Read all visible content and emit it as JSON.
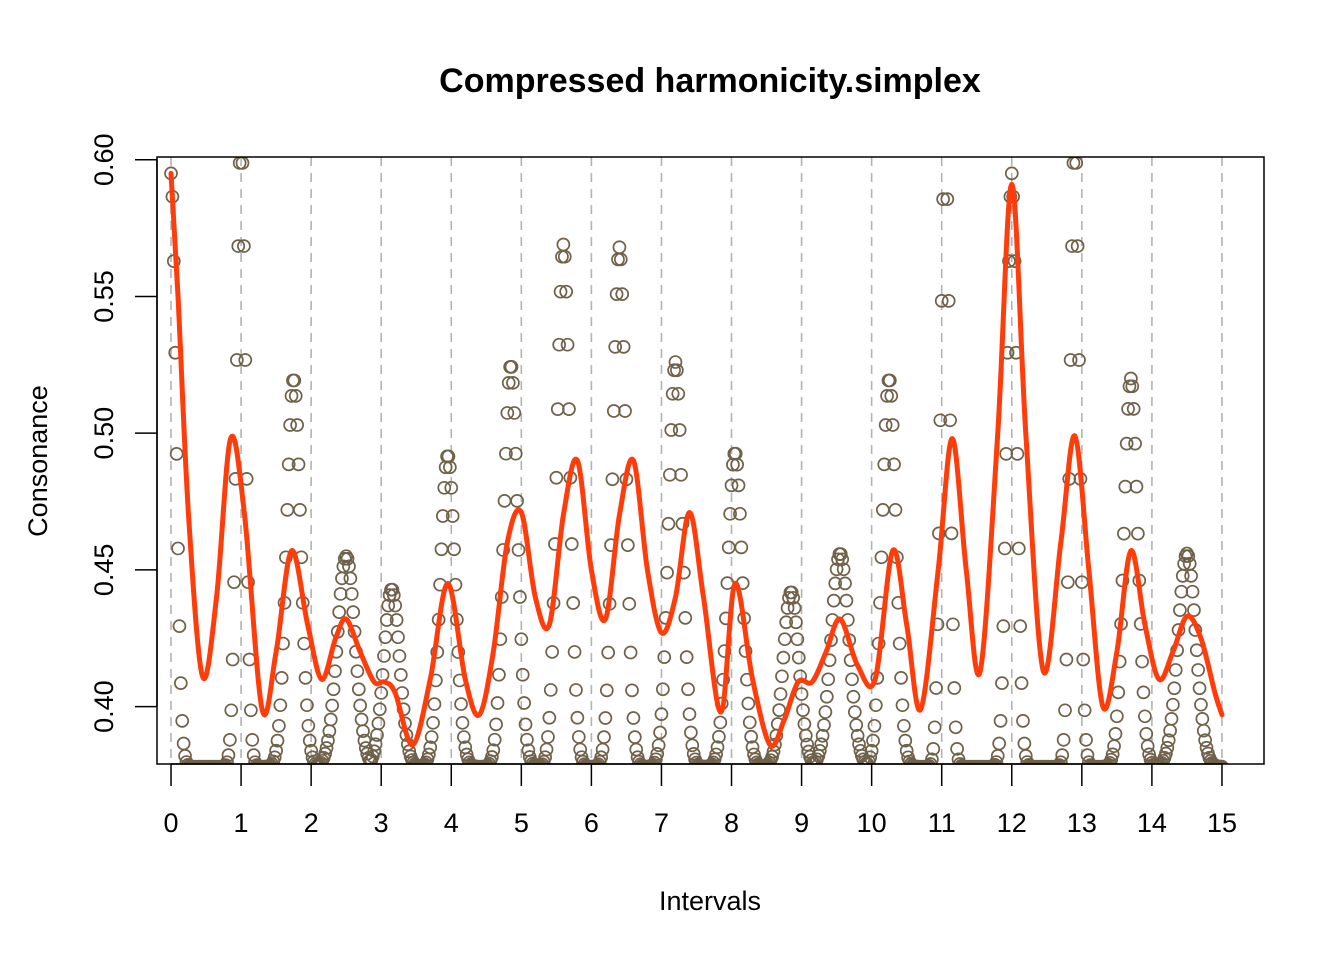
{
  "chart_data": {
    "type": "scatter",
    "title": "Compressed harmonicity.simplex",
    "xlabel": "Intervals",
    "ylabel": "Consonance",
    "xlim": [
      -0.2,
      15.6
    ],
    "ylim": [
      0.379,
      0.601
    ],
    "xticks": [
      "0",
      "1",
      "2",
      "3",
      "4",
      "5",
      "6",
      "7",
      "8",
      "9",
      "10",
      "11",
      "12",
      "13",
      "14",
      "15"
    ],
    "yticks": [
      "0.40",
      "0.45",
      "0.50",
      "0.55",
      "0.60"
    ],
    "vlines": [
      0,
      1,
      2,
      3,
      4,
      5,
      6,
      7,
      8,
      9,
      10,
      11,
      12,
      13,
      14,
      15
    ],
    "colors": {
      "points": "#70614a",
      "smooth": "#ff3c0a",
      "vlines": "#b3b3b3",
      "axis": "#000000"
    },
    "series": [
      {
        "role": "points",
        "peaks": [
          {
            "x": 0,
            "y": 0.595,
            "w": 0.1
          },
          {
            "x": 1,
            "y": 0.61,
            "w": 0.09
          },
          {
            "x": 1.75,
            "y": 0.52,
            "w": 0.14
          },
          {
            "x": 2.5,
            "y": 0.455,
            "w": 0.18
          },
          {
            "x": 3.15,
            "y": 0.443,
            "w": 0.16
          },
          {
            "x": 3.95,
            "y": 0.492,
            "w": 0.15
          },
          {
            "x": 4.85,
            "y": 0.525,
            "w": 0.14
          },
          {
            "x": 5.6,
            "y": 0.569,
            "w": 0.13
          },
          {
            "x": 6.4,
            "y": 0.568,
            "w": 0.13
          },
          {
            "x": 7.2,
            "y": 0.526,
            "w": 0.14
          },
          {
            "x": 8.05,
            "y": 0.493,
            "w": 0.15
          },
          {
            "x": 8.85,
            "y": 0.442,
            "w": 0.16
          },
          {
            "x": 9.55,
            "y": 0.456,
            "w": 0.18
          },
          {
            "x": 10.25,
            "y": 0.52,
            "w": 0.14
          },
          {
            "x": 11.05,
            "y": 0.61,
            "w": 0.09
          },
          {
            "x": 12,
            "y": 0.595,
            "w": 0.1
          },
          {
            "x": 12.9,
            "y": 0.61,
            "w": 0.09
          },
          {
            "x": 13.7,
            "y": 0.52,
            "w": 0.14
          },
          {
            "x": 14.5,
            "y": 0.456,
            "w": 0.18
          }
        ],
        "baseline": 0.378
      },
      {
        "role": "smooth",
        "x": [
          0,
          0.1,
          0.25,
          0.45,
          0.65,
          0.85,
          1.05,
          1.3,
          1.5,
          1.72,
          1.95,
          2.15,
          2.35,
          2.5,
          2.7,
          2.9,
          3.05,
          3.2,
          3.45,
          3.7,
          3.95,
          4.2,
          4.4,
          4.6,
          4.8,
          5.0,
          5.2,
          5.4,
          5.6,
          5.8,
          6.0,
          6.2,
          6.4,
          6.6,
          6.8,
          7.0,
          7.2,
          7.4,
          7.6,
          7.85,
          8.05,
          8.3,
          8.55,
          8.75,
          8.95,
          9.15,
          9.35,
          9.55,
          9.8,
          10.05,
          10.3,
          10.5,
          10.7,
          10.95,
          11.15,
          11.35,
          11.55,
          11.8,
          12.0,
          12.2,
          12.45,
          12.7,
          12.9,
          13.1,
          13.3,
          13.5,
          13.7,
          13.9,
          14.1,
          14.3,
          14.5,
          14.7,
          14.9,
          15.0
        ],
        "y": [
          0.595,
          0.55,
          0.47,
          0.411,
          0.44,
          0.498,
          0.47,
          0.399,
          0.42,
          0.457,
          0.43,
          0.41,
          0.425,
          0.432,
          0.42,
          0.409,
          0.409,
          0.405,
          0.386,
          0.41,
          0.445,
          0.41,
          0.397,
          0.42,
          0.46,
          0.471,
          0.44,
          0.43,
          0.47,
          0.49,
          0.45,
          0.432,
          0.47,
          0.49,
          0.45,
          0.427,
          0.44,
          0.471,
          0.44,
          0.398,
          0.445,
          0.41,
          0.386,
          0.395,
          0.409,
          0.409,
          0.42,
          0.432,
          0.415,
          0.41,
          0.457,
          0.43,
          0.399,
          0.45,
          0.498,
          0.45,
          0.413,
          0.5,
          0.591,
          0.5,
          0.413,
          0.46,
          0.499,
          0.45,
          0.4,
          0.42,
          0.457,
          0.43,
          0.41,
          0.42,
          0.433,
          0.425,
          0.405,
          0.397
        ]
      }
    ]
  }
}
